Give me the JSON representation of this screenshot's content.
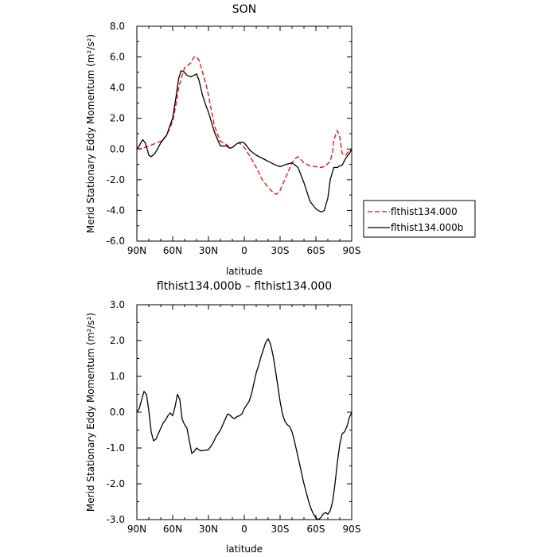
{
  "chart_data": [
    {
      "type": "line",
      "title": "SON",
      "xlabel": "latitude",
      "ylabel": "Merid Stationary Eddy Momentum (m²/s²)",
      "ylabel_text": "Merid Stationary Eddy Momentum",
      "ylabel_unit": "(m²/s²)",
      "xlim": [
        90,
        -90
      ],
      "ylim": [
        -6,
        8
      ],
      "x_ticks": [
        90,
        60,
        30,
        0,
        -30,
        -60,
        -90
      ],
      "x_tick_labels": [
        "90N",
        "60N",
        "30N",
        "0",
        "30S",
        "60S",
        "90S"
      ],
      "y_ticks": [
        -6,
        -4,
        -2,
        0,
        2,
        4,
        6,
        8
      ],
      "y_tick_labels": [
        "-6.0",
        "-4.0",
        "-2.0",
        "0.0",
        "2.0",
        "4.0",
        "6.0",
        "8.0"
      ],
      "grid": false,
      "legend_position": "outside-right",
      "series": [
        {
          "name": "flthist134.000",
          "color": "#ff0000",
          "dash": "dashed",
          "x": [
            90,
            85,
            80,
            75,
            70,
            65,
            60,
            57,
            55,
            52,
            50,
            48,
            45,
            42,
            40,
            38,
            35,
            32,
            30,
            25,
            20,
            15,
            12,
            10,
            7,
            5,
            2,
            0,
            -5,
            -10,
            -15,
            -20,
            -25,
            -27,
            -30,
            -35,
            -40,
            -43,
            -45,
            -50,
            -55,
            -60,
            -65,
            -68,
            -72,
            -74,
            -75,
            -78,
            -80,
            -82,
            -85,
            -88,
            -90
          ],
          "y": [
            0.0,
            0.05,
            0.2,
            0.35,
            0.5,
            0.9,
            1.8,
            3.0,
            4.0,
            4.8,
            5.3,
            5.4,
            5.6,
            6.0,
            6.0,
            5.8,
            5.0,
            4.2,
            3.5,
            1.5,
            0.5,
            0.3,
            0.1,
            0.1,
            0.3,
            0.4,
            0.3,
            0.1,
            -0.5,
            -1.2,
            -2.0,
            -2.5,
            -2.9,
            -2.95,
            -2.7,
            -1.8,
            -0.9,
            -0.6,
            -0.5,
            -0.9,
            -1.1,
            -1.15,
            -1.2,
            -1.1,
            -0.8,
            -0.2,
            0.6,
            1.2,
            0.8,
            -0.3,
            -0.4,
            -0.1,
            0.0
          ]
        },
        {
          "name": "flthist134.000b",
          "color": "#000000",
          "dash": "solid",
          "x": [
            90,
            88,
            86,
            85,
            83,
            81,
            80,
            78,
            75,
            72,
            70,
            68,
            65,
            62,
            60,
            57,
            55,
            53,
            50,
            48,
            45,
            42,
            40,
            38,
            35,
            32,
            30,
            25,
            20,
            15,
            12,
            10,
            7,
            5,
            2,
            0,
            -3,
            -5,
            -10,
            -15,
            -20,
            -25,
            -30,
            -35,
            -40,
            -45,
            -50,
            -55,
            -60,
            -63,
            -65,
            -67,
            -70,
            -72,
            -75,
            -78,
            -80,
            -82,
            -85,
            -88,
            -90
          ],
          "y": [
            0.0,
            0.2,
            0.5,
            0.6,
            0.4,
            -0.1,
            -0.4,
            -0.5,
            -0.3,
            0.1,
            0.4,
            0.6,
            0.9,
            1.6,
            2.0,
            3.5,
            4.6,
            5.1,
            5.0,
            4.8,
            4.7,
            4.8,
            4.9,
            4.5,
            3.5,
            2.8,
            2.4,
            1.1,
            0.2,
            0.2,
            0.05,
            0.1,
            0.3,
            0.4,
            0.45,
            0.4,
            0.1,
            -0.1,
            -0.4,
            -0.6,
            -0.8,
            -1.0,
            -1.15,
            -1.0,
            -0.9,
            -1.2,
            -2.2,
            -3.4,
            -3.9,
            -4.05,
            -4.1,
            -4.0,
            -3.2,
            -2.0,
            -1.2,
            -1.2,
            -1.1,
            -1.05,
            -0.6,
            -0.3,
            0.0
          ]
        }
      ]
    },
    {
      "type": "line",
      "title": "flthist134.000b – flthist134.000",
      "xlabel": "latitude",
      "ylabel": "Merid Stationary Eddy Momentum (m²/s²)",
      "ylabel_text": "Merid Stationary Eddy Momentum",
      "ylabel_unit": "(m²/s²)",
      "xlim": [
        90,
        -90
      ],
      "ylim": [
        -3,
        3
      ],
      "x_ticks": [
        90,
        60,
        30,
        0,
        -30,
        -60,
        -90
      ],
      "x_tick_labels": [
        "90N",
        "60N",
        "30N",
        "0",
        "30S",
        "60S",
        "90S"
      ],
      "y_ticks": [
        -3,
        -2,
        -1,
        0,
        1,
        2,
        3
      ],
      "y_tick_labels": [
        "-3.0",
        "-2.0",
        "-1.0",
        "0.0",
        "1.0",
        "2.0",
        "3.0"
      ],
      "grid": false,
      "series": [
        {
          "color": "#000000",
          "dash": "solid",
          "x": [
            90,
            88,
            86,
            84,
            82,
            80,
            78,
            76,
            74,
            72,
            70,
            68,
            66,
            64,
            62,
            60,
            58,
            56,
            54,
            52,
            50,
            48,
            46,
            44,
            42,
            40,
            38,
            36,
            34,
            32,
            30,
            28,
            26,
            24,
            22,
            20,
            18,
            16,
            14,
            12,
            10,
            8,
            6,
            4,
            2,
            0,
            -2,
            -4,
            -6,
            -8,
            -10,
            -12,
            -14,
            -16,
            -18,
            -20,
            -22,
            -24,
            -26,
            -28,
            -30,
            -32,
            -34,
            -36,
            -38,
            -40,
            -42,
            -44,
            -46,
            -48,
            -50,
            -52,
            -54,
            -56,
            -58,
            -60,
            -62,
            -64,
            -66,
            -68,
            -70,
            -72,
            -74,
            -76,
            -78,
            -80,
            -82,
            -84,
            -86,
            -88,
            -90
          ],
          "y": [
            0.0,
            0.1,
            0.35,
            0.58,
            0.5,
            0.05,
            -0.55,
            -0.8,
            -0.75,
            -0.6,
            -0.45,
            -0.3,
            -0.22,
            -0.1,
            -0.02,
            -0.1,
            0.15,
            0.5,
            0.35,
            -0.2,
            -0.35,
            -0.45,
            -0.8,
            -1.15,
            -1.1,
            -1.0,
            -1.05,
            -1.08,
            -1.07,
            -1.06,
            -1.05,
            -0.95,
            -0.85,
            -0.7,
            -0.6,
            -0.5,
            -0.35,
            -0.2,
            -0.05,
            -0.08,
            -0.15,
            -0.18,
            -0.12,
            -0.1,
            -0.05,
            0.1,
            0.2,
            0.3,
            0.5,
            0.8,
            1.1,
            1.3,
            1.55,
            1.75,
            1.95,
            2.05,
            1.9,
            1.6,
            1.2,
            0.75,
            0.3,
            -0.05,
            -0.25,
            -0.35,
            -0.4,
            -0.55,
            -0.8,
            -1.1,
            -1.4,
            -1.7,
            -2.0,
            -2.25,
            -2.5,
            -2.7,
            -2.85,
            -2.95,
            -3.0,
            -2.95,
            -2.85,
            -2.8,
            -2.85,
            -2.75,
            -2.5,
            -2.0,
            -1.4,
            -0.9,
            -0.6,
            -0.55,
            -0.4,
            -0.15,
            0.0
          ]
        }
      ]
    }
  ]
}
